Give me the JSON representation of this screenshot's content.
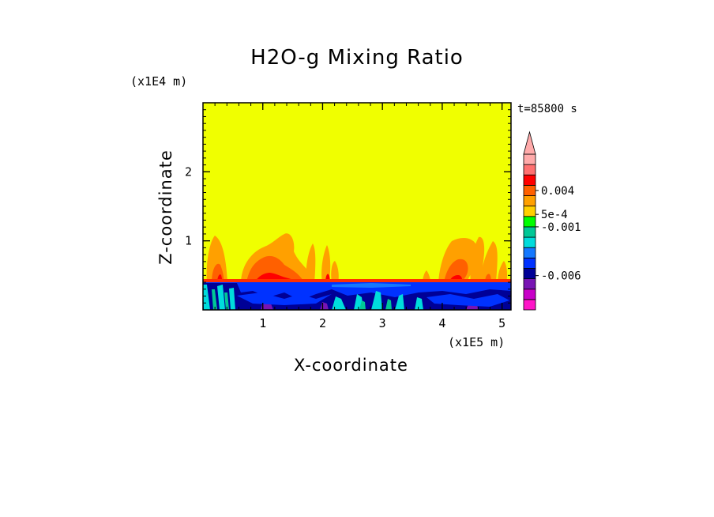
{
  "chart_data": {
    "type": "heatmap",
    "title": "H2O-g Mixing Ratio",
    "xlabel": "X-coordinate",
    "ylabel": "Z-coordinate",
    "x_scale_label": "(x1E5 m)",
    "z_scale_label": "(x1E4 m)",
    "timestamp": "t=85800 s",
    "xlim": [
      0,
      5.15
    ],
    "ylim": [
      0,
      3
    ],
    "x_ticks": [
      1,
      2,
      3,
      4,
      5
    ],
    "x_tick_labels": [
      "1",
      "2",
      "3",
      "4",
      "5"
    ],
    "y_ticks": [
      1,
      2
    ],
    "y_tick_labels": [
      "1",
      "2"
    ],
    "background_level_color": "#f0ff00",
    "colorbar": {
      "colors_bottom_to_top": [
        "#ff14c8",
        "#c800c8",
        "#7814b4",
        "#000096",
        "#0032ff",
        "#1478ff",
        "#00dcdc",
        "#00c896",
        "#00ff00",
        "#ffd000",
        "#ffa000",
        "#ff6000",
        "#ff0000",
        "#ff7070",
        "#ffaaaa"
      ],
      "labels": [
        {
          "text": "0.004",
          "level": 11.5
        },
        {
          "text": "5e-4",
          "level": 9.2
        },
        {
          "text": "-0.001",
          "level": 8.0
        },
        {
          "text": "-0.006",
          "level": 3.3
        }
      ],
      "extend_top": true
    },
    "regions": {
      "blue_band_top_z": 0.4,
      "orange_plumes_x": [
        [
          0.1,
          0.5
        ],
        [
          0.75,
          1.65
        ],
        [
          1.85,
          2.2
        ],
        [
          3.75,
          4.5
        ],
        [
          4.5,
          4.8
        ]
      ],
      "orange_plumes_top_z": [
        1.05,
        0.85,
        0.9,
        1.05,
        1.0
      ]
    }
  }
}
